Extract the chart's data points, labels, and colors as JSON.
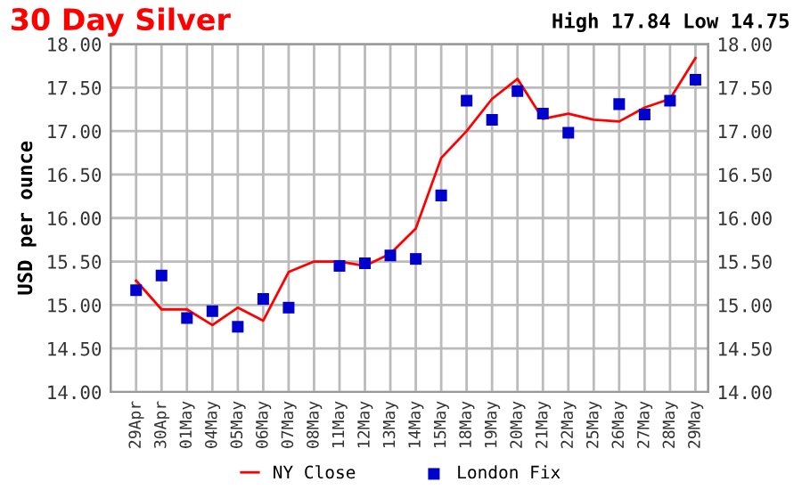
{
  "chart_data": {
    "type": "line",
    "title": "30 Day Silver",
    "subtitle": "High 17.84 Low 14.75",
    "ylabel": "USD per ounce",
    "categories": [
      "29Apr",
      "30Apr",
      "01May",
      "04May",
      "05May",
      "06May",
      "07May",
      "08May",
      "11May",
      "12May",
      "13May",
      "14May",
      "15May",
      "18May",
      "19May",
      "20May",
      "21May",
      "22May",
      "25May",
      "26May",
      "27May",
      "28May",
      "29May"
    ],
    "series": [
      {
        "name": "NY Close",
        "marker": "none",
        "color": "#ff0000",
        "values": [
          15.28,
          14.95,
          14.95,
          14.77,
          14.97,
          14.82,
          15.38,
          15.5,
          15.5,
          15.45,
          15.59,
          15.88,
          16.69,
          17.0,
          17.37,
          17.6,
          17.14,
          17.2,
          17.13,
          17.11,
          17.27,
          17.37,
          17.84
        ]
      },
      {
        "name": "London Fix",
        "type": "scatter",
        "marker": "square",
        "color": "#0000cc",
        "values": [
          15.17,
          15.34,
          14.85,
          14.93,
          14.75,
          15.07,
          14.97,
          null,
          15.45,
          15.48,
          15.57,
          15.53,
          16.26,
          17.35,
          17.13,
          17.46,
          17.2,
          16.98,
          null,
          17.31,
          17.19,
          17.35,
          17.59
        ]
      }
    ],
    "ylim": [
      14,
      18
    ],
    "yticks": [
      {
        "value": 14,
        "label": "14.00"
      },
      {
        "value": 14.5,
        "label": "14.50"
      },
      {
        "value": 15,
        "label": "15.00"
      },
      {
        "value": 15.5,
        "label": "15.50"
      },
      {
        "value": 16,
        "label": "16.00"
      },
      {
        "value": 16.5,
        "label": "16.50"
      },
      {
        "value": 17,
        "label": "17.00"
      },
      {
        "value": 17.5,
        "label": "17.50"
      },
      {
        "value": 18,
        "label": "18.00"
      }
    ],
    "y2lim": [
      14,
      18
    ],
    "y2ticks": [
      {
        "value": 14,
        "label": "14.00"
      },
      {
        "value": 14.5,
        "label": "14.50"
      },
      {
        "value": 15,
        "label": "15.00"
      },
      {
        "value": 15.5,
        "label": "15.50"
      },
      {
        "value": 16,
        "label": "16.00"
      },
      {
        "value": 16.5,
        "label": "16.50"
      },
      {
        "value": 17,
        "label": "17.00"
      },
      {
        "value": 17.5,
        "label": "17.50"
      },
      {
        "value": 18,
        "label": "18.00"
      }
    ],
    "grid": true,
    "legend": "bottom"
  }
}
